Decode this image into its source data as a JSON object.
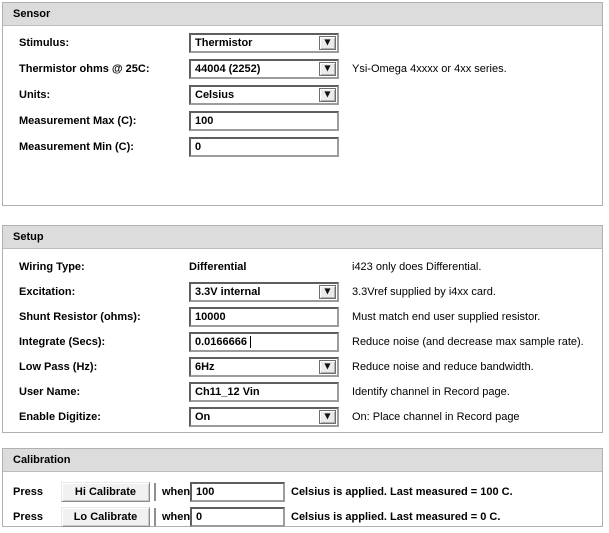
{
  "colors": {
    "group_header_bg": "#dcdcdc",
    "group_border": "#b0b0b0",
    "field_border_dark": "#5e5e5e",
    "button_face": "#f1f1f1",
    "text": "#000000",
    "background": "#ffffff"
  },
  "icons": {
    "dropdown_arrow": "▼"
  },
  "sensor": {
    "title": "Sensor",
    "rows": [
      {
        "label": "Stimulus:",
        "value": "Thermistor",
        "note": ""
      },
      {
        "label": "Thermistor ohms @ 25C:",
        "value": "44004 (2252)",
        "note": "Ysi-Omega 4xxxx or 4xx series."
      },
      {
        "label": "Units:",
        "value": "Celsius",
        "note": ""
      },
      {
        "label": "Measurement Max (C):",
        "value": "100",
        "note": ""
      },
      {
        "label": "Measurement Min (C):",
        "value": "0",
        "note": ""
      }
    ]
  },
  "setup": {
    "title": "Setup",
    "rows": [
      {
        "label": "Wiring Type:",
        "value": "Differential",
        "note": "i423 only does Differential."
      },
      {
        "label": "Excitation:",
        "value": "3.3V internal",
        "note": "3.3Vref supplied by i4xx card."
      },
      {
        "label": "Shunt Resistor (ohms):",
        "value": "10000",
        "note": "Must match end user supplied resistor."
      },
      {
        "label": "Integrate (Secs):",
        "value": "0.0166666",
        "note": "Reduce noise (and decrease max sample rate)."
      },
      {
        "label": "Low Pass (Hz):",
        "value": "6Hz",
        "note": "Reduce noise and reduce bandwidth."
      },
      {
        "label": "User Name:",
        "value": "Ch11_12 Vin",
        "note": "Identify channel in Record page."
      },
      {
        "label": "Enable Digitize:",
        "value": "On",
        "note": "On: Place channel in Record page"
      }
    ]
  },
  "calibration": {
    "title": "Calibration",
    "rows": [
      {
        "press": "Press",
        "button": "Hi Calibrate",
        "when": "when",
        "value": "100",
        "note": "Celsius is applied. Last measured = 100 C."
      },
      {
        "press": "Press",
        "button": "Lo Calibrate",
        "when": "when",
        "value": "0",
        "note": "Celsius is applied. Last measured = 0 C."
      }
    ]
  }
}
